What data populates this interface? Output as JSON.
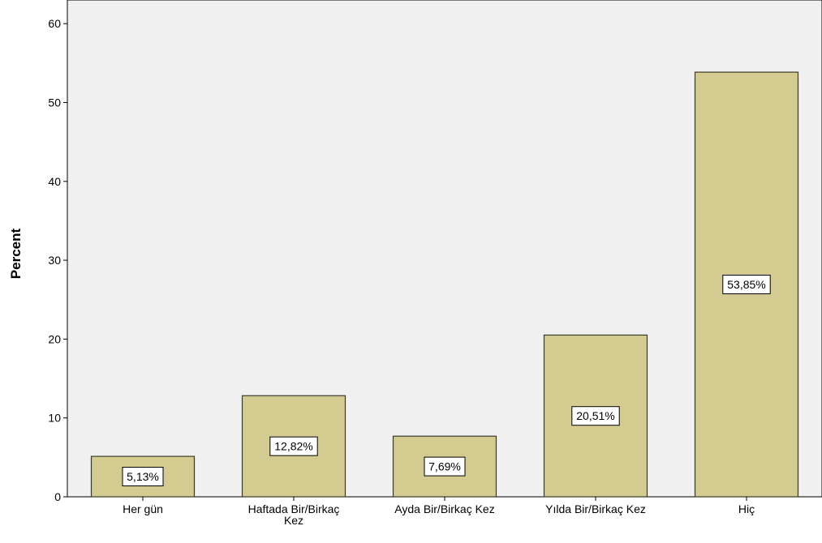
{
  "chart_data": {
    "type": "bar",
    "title": "",
    "xlabel": "",
    "ylabel": "Percent",
    "ylim": [
      0,
      63
    ],
    "yticks": [
      0,
      10,
      20,
      30,
      40,
      50,
      60
    ],
    "grid": false,
    "categories": [
      "Her gün",
      "Haftada Bir/Birkaç Kez",
      "Ayda Bir/Birkaç Kez",
      "Yılda Bir/Birkaç Kez",
      "Hiç"
    ],
    "values": [
      5.13,
      12.82,
      7.69,
      20.51,
      53.85
    ],
    "data_labels": [
      "5,13%",
      "12,82%",
      "7,69%",
      "20,51%",
      "53,85%"
    ],
    "colors": {
      "bar_fill": "#d3cb8f",
      "bar_stroke": "#3a3a2a",
      "plot_background": "#f0f0f0"
    }
  }
}
